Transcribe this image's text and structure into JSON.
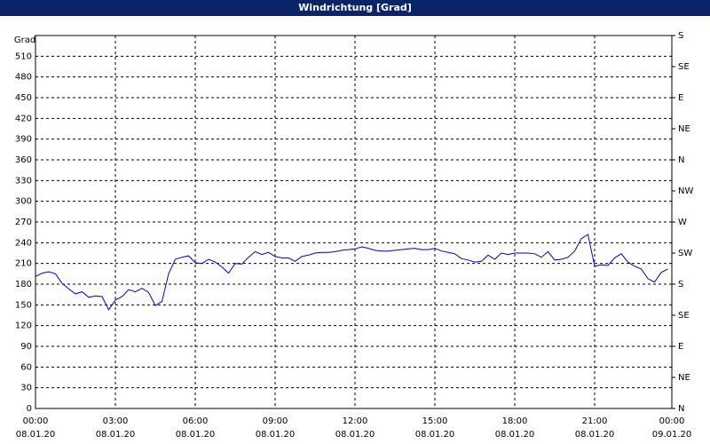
{
  "chart_data": {
    "type": "line",
    "title": "Windrichtung [Grad]",
    "y_label": "Grad",
    "x": [
      0,
      0.25,
      0.5,
      0.75,
      1,
      1.25,
      1.5,
      1.75,
      2,
      2.25,
      2.5,
      2.75,
      3,
      3.25,
      3.5,
      3.75,
      4,
      4.25,
      4.5,
      4.75,
      5,
      5.25,
      5.5,
      5.75,
      6,
      6.25,
      6.5,
      6.75,
      7,
      7.25,
      7.5,
      7.75,
      8,
      8.25,
      8.5,
      8.75,
      9,
      9.25,
      9.5,
      9.75,
      10,
      10.25,
      10.5,
      10.75,
      11,
      11.25,
      11.5,
      11.75,
      12,
      12.25,
      12.5,
      12.75,
      13,
      13.25,
      13.5,
      13.75,
      14,
      14.25,
      14.5,
      14.75,
      15,
      15.25,
      15.5,
      15.75,
      16,
      16.25,
      16.5,
      16.75,
      17,
      17.25,
      17.5,
      17.75,
      18,
      18.25,
      18.5,
      18.75,
      19,
      19.25,
      19.5,
      19.75,
      20,
      20.25,
      20.5,
      20.75,
      21,
      21.25,
      21.5,
      21.75,
      22,
      22.25,
      22.5,
      22.75,
      23,
      23.25,
      23.5,
      23.75
    ],
    "series": [
      {
        "name": "Windrichtung",
        "color": "#0000cc",
        "values": [
          191,
          196,
          198,
          195,
          181,
          173,
          166,
          169,
          161,
          163,
          162,
          143,
          157,
          162,
          172,
          169,
          174,
          168,
          149,
          155,
          195,
          216,
          219,
          221,
          211,
          210,
          216,
          212,
          205,
          196,
          210,
          209,
          219,
          227,
          223,
          226,
          220,
          218,
          218,
          213,
          220,
          222,
          225,
          226,
          226,
          227,
          229,
          230,
          231,
          234,
          232,
          229,
          228,
          228,
          229,
          230,
          231,
          232,
          230,
          230,
          232,
          228,
          226,
          224,
          217,
          215,
          212,
          213,
          222,
          216,
          225,
          223,
          225,
          225,
          225,
          224,
          219,
          227,
          215,
          216,
          219,
          228,
          246,
          252,
          206,
          208,
          207,
          218,
          224,
          212,
          206,
          202,
          188,
          183,
          197,
          202
        ]
      }
    ],
    "xlim": [
      0,
      24
    ],
    "xticks": [
      {
        "value": 0,
        "label": "00:00"
      },
      {
        "value": 3,
        "label": "03:00"
      },
      {
        "value": 6,
        "label": "06:00"
      },
      {
        "value": 9,
        "label": "09:00"
      },
      {
        "value": 12,
        "label": "12:00"
      },
      {
        "value": 15,
        "label": "15:00"
      },
      {
        "value": 18,
        "label": "18:00"
      },
      {
        "value": 21,
        "label": "21:00"
      },
      {
        "value": 24,
        "label": "00:00"
      }
    ],
    "xtick_dates": [
      "08.01.20",
      "08.01.20",
      "08.01.20",
      "08.01.20",
      "08.01.20",
      "08.01.20",
      "08.01.20",
      "08.01.20",
      "09.01.20"
    ],
    "ylim": [
      0,
      540
    ],
    "yticks": [
      0,
      30,
      60,
      90,
      120,
      150,
      180,
      210,
      240,
      270,
      300,
      330,
      360,
      390,
      420,
      450,
      480,
      510
    ],
    "y2lim": [
      0,
      540
    ],
    "y2ticks": [
      {
        "value": 0,
        "label": "N"
      },
      {
        "value": 45,
        "label": "NE"
      },
      {
        "value": 90,
        "label": "E"
      },
      {
        "value": 135,
        "label": "SE"
      },
      {
        "value": 180,
        "label": "S"
      },
      {
        "value": 225,
        "label": "SW"
      },
      {
        "value": 270,
        "label": "W"
      },
      {
        "value": 315,
        "label": "NW"
      },
      {
        "value": 360,
        "label": "N"
      },
      {
        "value": 405,
        "label": "NE"
      },
      {
        "value": 450,
        "label": "E"
      },
      {
        "value": 495,
        "label": "SE"
      },
      {
        "value": 540,
        "label": "S"
      }
    ],
    "grid": true
  }
}
